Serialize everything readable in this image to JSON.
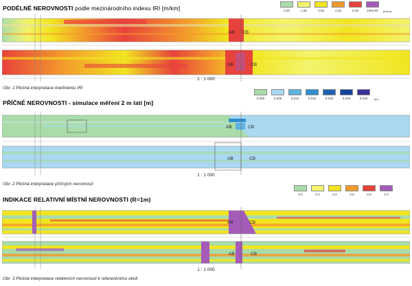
{
  "panels": [
    {
      "title_bold": "PODÉLNÉ NEROVNOSTI",
      "title_normal": "podle mezinárodního indexu IRI [m/km]",
      "legend": {
        "labels": [
          "0.00",
          "1.95",
          "3.05",
          "4.25",
          "6.30",
          "1000.00"
        ],
        "unit": "[m/km]",
        "colors": [
          "#a9dca9",
          "#f3f46c",
          "#f1e520",
          "#f39a2c",
          "#e8423c",
          "#a45cb8"
        ]
      },
      "marker_left": "AB",
      "marker_right": "CB",
      "scale": "1 : 1 000",
      "caption": "Obr. 1 Plošná interpretace koeficientu IRI"
    },
    {
      "title_bold": "PŘÍČNÉ NEROVNOSTI - simulace měření 2 m latí [m]",
      "title_normal": "",
      "legend": {
        "labels": [
          "0.000",
          "0.005",
          "0.010",
          "0.015",
          "0.020",
          "0.035",
          "0.100"
        ],
        "unit": "[m]",
        "colors": [
          "#a9dca9",
          "#a9d8f0",
          "#5fb3e0",
          "#2f8ecf",
          "#1f63b4",
          "#16449b",
          "#39329a"
        ]
      },
      "marker_left": "AB",
      "marker_right": "CB",
      "scale": "1 : 1 000",
      "caption": "Obr. 2 Plošná interpretace příčných nerovností"
    },
    {
      "title_bold": "INDIKACE RELATIVNÍ MÍSTNÍ NEROVNOSTI (R=1m)",
      "title_normal": "",
      "legend": {
        "labels": [
          "0.0",
          "0.2",
          "0.4",
          "0.6",
          "0.8",
          "1.0"
        ],
        "unit": "",
        "colors": [
          "#a9dca9",
          "#f3f46c",
          "#f1e520",
          "#f39a2c",
          "#e8423c",
          "#a45cb8"
        ]
      },
      "marker_left": "AB",
      "marker_right": "CB",
      "scale": "1 : 1 000",
      "caption": "Obr. 3 Plošná interpretace relativních nerovností k referenčnímu okolí"
    }
  ]
}
